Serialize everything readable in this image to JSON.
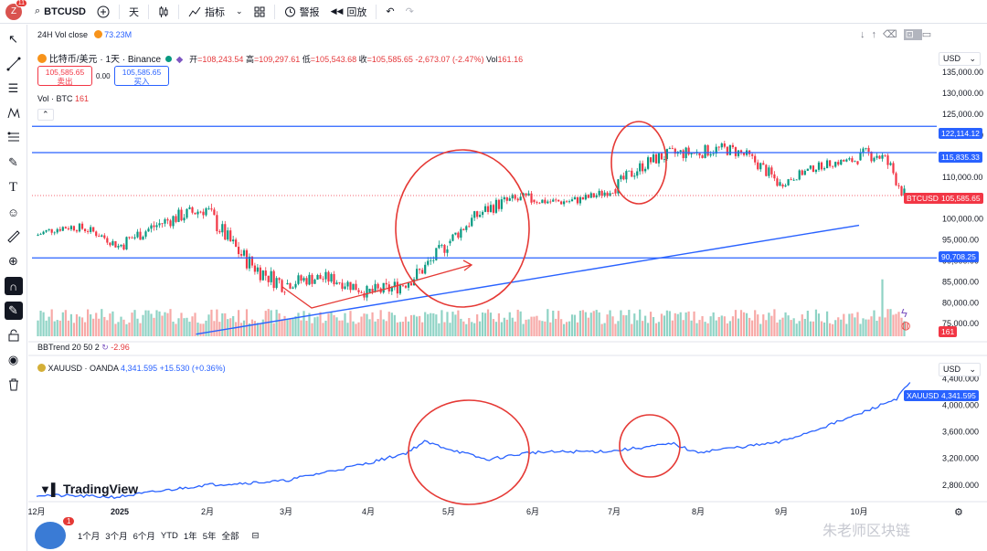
{
  "toolbar": {
    "avatar_letter": "Z",
    "avatar_badge": "11",
    "symbol": "BTCUSD",
    "interval": "天",
    "indicators_label": "指标",
    "alert_label": "警报",
    "replay_label": "回放"
  },
  "main_pane": {
    "vol_close_label": "24H Vol close",
    "vol_close_value": "73.23M",
    "title": "比特币/美元 · 1天 · Binance",
    "open_label": "开",
    "open_value": "=108,243.54",
    "high_label": "高",
    "high_value": "=109,297.61",
    "low_label": "低",
    "low_value": "=105,543.68",
    "close_label": "收",
    "close_value": "=105,585.65",
    "change": "-2,673.07 (-2.47%)",
    "vol_label": "Vol",
    "vol_value": "161.16",
    "sell_price": "105,585.65",
    "sell_label": "卖出",
    "spread": "0.00",
    "buy_price": "105,585.65",
    "buy_label": "买入",
    "vol_indicator_label": "Vol · BTC",
    "vol_indicator_value": "161",
    "currency": "USD",
    "symbol_tag": "BTCUSD",
    "last_price": "105,585.65",
    "vol_tag": "161"
  },
  "bbtrend": {
    "label": "BBTrend 20 50 2",
    "value": "-2.96"
  },
  "gold_pane": {
    "title": "XAUUSD · OANDA",
    "value": "4,341.595",
    "change": "+15.530 (+0.36%)",
    "currency": "USD",
    "symbol_tag": "XAUUSD",
    "last_price": "4,341.595",
    "logo_text": "TradingView"
  },
  "bottom_bar": {
    "ranges": [
      "1个月",
      "3个月",
      "6个月",
      "YTD",
      "1年",
      "5年",
      "全部"
    ],
    "notif_count": "1"
  },
  "watermark": "朱老师区块链",
  "colors": {
    "up": "#089981",
    "down": "#f23645",
    "hline": "#2962ff",
    "annot": "#e53935",
    "gold": "#2962ff"
  },
  "chart_data": [
    {
      "type": "candlestick",
      "title": "比特币/美元 · 1天 · Binance",
      "x_ticks": [
        "12月",
        "2025",
        "2月",
        "3月",
        "4月",
        "5月",
        "6月",
        "7月",
        "8月",
        "9月",
        "10月"
      ],
      "y_ticks": [
        75000,
        80000,
        85000,
        90000,
        95000,
        100000,
        105000,
        110000,
        115000,
        120000,
        125000,
        130000,
        135000
      ],
      "ylim": [
        72000,
        137000
      ],
      "horizontal_lines": [
        122114.12,
        115835.33,
        90708.25
      ],
      "horizontal_line_labels": [
        "122,114.12",
        "115,835.33",
        "90,708.25"
      ],
      "trendline": {
        "from": [
          "2025-01-28",
          72500
        ],
        "to": [
          "2025-12-01",
          98500
        ]
      },
      "monthly_path": [
        {
          "x": "2024-12",
          "o": 96000,
          "h": 104000,
          "l": 92000,
          "c": 93500
        },
        {
          "x": "2025-01",
          "o": 93500,
          "h": 109000,
          "l": 89200,
          "c": 102400
        },
        {
          "x": "2025-02",
          "o": 102400,
          "h": 102800,
          "l": 78200,
          "c": 84400
        },
        {
          "x": "2025-03",
          "o": 84400,
          "h": 95000,
          "l": 76600,
          "c": 82500
        },
        {
          "x": "2025-04",
          "o": 82500,
          "h": 95800,
          "l": 74500,
          "c": 94200
        },
        {
          "x": "2025-05",
          "o": 94200,
          "h": 111900,
          "l": 93300,
          "c": 104600
        },
        {
          "x": "2025-06",
          "o": 104600,
          "h": 110500,
          "l": 98200,
          "c": 107100
        },
        {
          "x": "2025-07",
          "o": 107100,
          "h": 123200,
          "l": 105300,
          "c": 115700
        },
        {
          "x": "2025-08",
          "o": 115700,
          "h": 124400,
          "l": 107400,
          "c": 108200
        },
        {
          "x": "2025-09",
          "o": 108200,
          "h": 117900,
          "l": 107200,
          "c": 114000
        },
        {
          "x": "2025-10",
          "o": 114000,
          "h": 126200,
          "l": 103500,
          "c": 105585.65
        }
      ]
    },
    {
      "type": "line",
      "title": "XAUUSD · OANDA",
      "x_ticks": [
        "12月",
        "2025",
        "2月",
        "3月",
        "4月",
        "5月",
        "6月",
        "7月",
        "8月",
        "9月",
        "10月"
      ],
      "y_ticks": [
        2800,
        3200,
        3600,
        4000,
        4400
      ],
      "ylim": [
        2550,
        4500
      ],
      "x": [
        "2024-12-01",
        "2024-12-31",
        "2025-01-31",
        "2025-02-28",
        "2025-03-31",
        "2025-04-15",
        "2025-04-22",
        "2025-05-15",
        "2025-05-31",
        "2025-06-30",
        "2025-07-23",
        "2025-07-31",
        "2025-08-31",
        "2025-09-15",
        "2025-09-30",
        "2025-10-15",
        "2025-10-20"
      ],
      "y": [
        2650,
        2620,
        2800,
        2860,
        3120,
        3280,
        3450,
        3180,
        3290,
        3310,
        3420,
        3290,
        3440,
        3640,
        3850,
        4100,
        4341.595
      ]
    }
  ]
}
